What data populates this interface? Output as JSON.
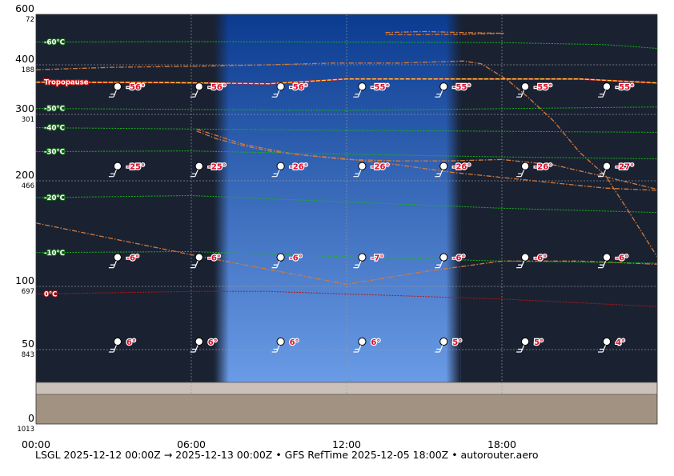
{
  "caption": "LSGL 2025-12-12 00:00Z → 2025-12-13 00:00Z • GFS RefTime 2025-12-05 18:00Z • autorouter.aero",
  "chart_data": {
    "type": "area",
    "x_ticks": [
      {
        "label": "00:00",
        "hour": 0
      },
      {
        "label": "06:00",
        "hour": 6
      },
      {
        "label": "12:00",
        "hour": 12
      },
      {
        "label": "18:00",
        "hour": 18
      }
    ],
    "xlim_hours": [
      0,
      24
    ],
    "y_ticks": [
      {
        "fl": 0,
        "label": "0",
        "pressure": "1013"
      },
      {
        "fl": 50,
        "label": "50",
        "pressure": "843"
      },
      {
        "fl": 100,
        "label": "100",
        "pressure": "697"
      },
      {
        "fl": 200,
        "label": "200",
        "pressure": "466"
      },
      {
        "fl": 300,
        "label": "300",
        "pressure": "301"
      },
      {
        "fl": 400,
        "label": "400",
        "pressure": "188"
      },
      {
        "fl": 600,
        "label": "600",
        "pressure": "72"
      }
    ],
    "y_scale": "pressure",
    "ylim_fl": [
      0,
      600
    ],
    "terrain_top_fl": 18,
    "ground_band_top_fl": 26,
    "daylight_hours": [
      6.9,
      16.4
    ],
    "colors": {
      "night": "#1a2232",
      "day_top": "#0b3b8f",
      "day_bottom": "#6a9be6",
      "terrain": "#a29282",
      "ground_band": "#cbc1b8",
      "cloud_lines": "#d57a3a",
      "tropopause": "#ffd23a",
      "isotherm": "#18b418",
      "zero_isotherm": "#b01818",
      "grid": "#9a9a9a"
    },
    "tropopause": {
      "label": "Tropopause",
      "fl": 365
    },
    "isotherms": [
      {
        "label": "-60°C",
        "points": [
          [
            0,
            490
          ],
          [
            6,
            492
          ],
          [
            12,
            490
          ],
          [
            18,
            488
          ],
          [
            22,
            480
          ],
          [
            24,
            465
          ]
        ]
      },
      {
        "label": "-50°C",
        "points": [
          [
            0,
            312
          ],
          [
            12,
            308
          ],
          [
            24,
            315
          ]
        ]
      },
      {
        "label": "-40°C",
        "points": [
          [
            0,
            280
          ],
          [
            12,
            276
          ],
          [
            24,
            273
          ]
        ]
      },
      {
        "label": "-30°C",
        "points": [
          [
            0,
            244
          ],
          [
            6,
            245
          ],
          [
            12,
            240
          ],
          [
            18,
            236
          ],
          [
            24,
            233
          ]
        ]
      },
      {
        "label": "-20°C",
        "points": [
          [
            0,
            184
          ],
          [
            6,
            186
          ],
          [
            12,
            180
          ],
          [
            18,
            174
          ],
          [
            24,
            170
          ]
        ]
      },
      {
        "label": "-10°C",
        "points": [
          [
            0,
            132
          ],
          [
            6,
            133
          ],
          [
            12,
            128
          ],
          [
            18,
            124
          ],
          [
            24,
            122
          ]
        ]
      },
      {
        "label": "0°C",
        "points": [
          [
            0,
            94
          ],
          [
            6,
            96
          ],
          [
            9,
            96
          ],
          [
            12,
            94
          ],
          [
            18,
            90
          ],
          [
            24,
            84
          ]
        ]
      }
    ],
    "cloud_outlines": [
      [
        [
          0,
          390
        ],
        [
          3,
          395
        ],
        [
          6,
          397
        ],
        [
          9,
          400
        ],
        [
          11.5,
          407
        ],
        [
          14,
          407
        ],
        [
          16.5,
          415
        ],
        [
          17.2,
          404
        ],
        [
          18.2,
          370
        ],
        [
          19,
          335
        ],
        [
          20,
          290
        ],
        [
          21,
          243
        ],
        [
          22,
          208
        ],
        [
          23,
          167
        ],
        [
          24,
          128
        ]
      ],
      [
        [
          6.2,
          278
        ],
        [
          8,
          255
        ],
        [
          10,
          240
        ],
        [
          12,
          233
        ],
        [
          14,
          224
        ],
        [
          16,
          213
        ],
        [
          18,
          205
        ],
        [
          20,
          198
        ],
        [
          22,
          193
        ],
        [
          24,
          191
        ]
      ],
      [
        [
          6.2,
          275
        ],
        [
          7,
          263
        ],
        [
          8,
          253
        ],
        [
          9,
          245
        ],
        [
          10,
          240
        ],
        [
          12,
          232
        ],
        [
          14,
          230
        ],
        [
          16,
          230
        ],
        [
          18,
          232
        ],
        [
          20,
          224
        ],
        [
          22,
          206
        ],
        [
          24,
          192
        ]
      ],
      [
        [
          0,
          160
        ],
        [
          3,
          145
        ],
        [
          6,
          130
        ],
        [
          9,
          116
        ],
        [
          12,
          102
        ],
        [
          15,
          114
        ],
        [
          18,
          124
        ],
        [
          21,
          124
        ],
        [
          24,
          121
        ]
      ],
      [
        [
          13.5,
          528
        ],
        [
          15,
          532
        ],
        [
          16.5,
          528
        ],
        [
          18.1,
          525
        ],
        [
          16.5,
          521
        ],
        [
          14.5,
          519
        ],
        [
          13.5,
          520
        ]
      ]
    ],
    "stations": [
      {
        "hour": 3.15,
        "temps": {
          "50": "6°",
          "120": "-6°",
          "210": "-25°",
          "340": "-56°"
        }
      },
      {
        "hour": 6.3,
        "temps": {
          "50": "6°",
          "120": "-6°",
          "210": "-25°",
          "340": "-56°"
        }
      },
      {
        "hour": 9.45,
        "temps": {
          "50": "6°",
          "120": "-6°",
          "210": "-26°",
          "340": "-56°"
        }
      },
      {
        "hour": 12.6,
        "temps": {
          "50": "6°",
          "120": "-7°",
          "210": "-26°",
          "340": "-55°"
        }
      },
      {
        "hour": 15.75,
        "temps": {
          "50": "5°",
          "120": "-6°",
          "210": "-26°",
          "340": "-55°"
        }
      },
      {
        "hour": 18.9,
        "temps": {
          "50": "5°",
          "120": "-6°",
          "210": "-26°",
          "340": "-55°"
        }
      },
      {
        "hour": 22.05,
        "temps": {
          "50": "4°",
          "120": "-6°",
          "210": "-27°",
          "340": "-55°"
        }
      }
    ]
  }
}
